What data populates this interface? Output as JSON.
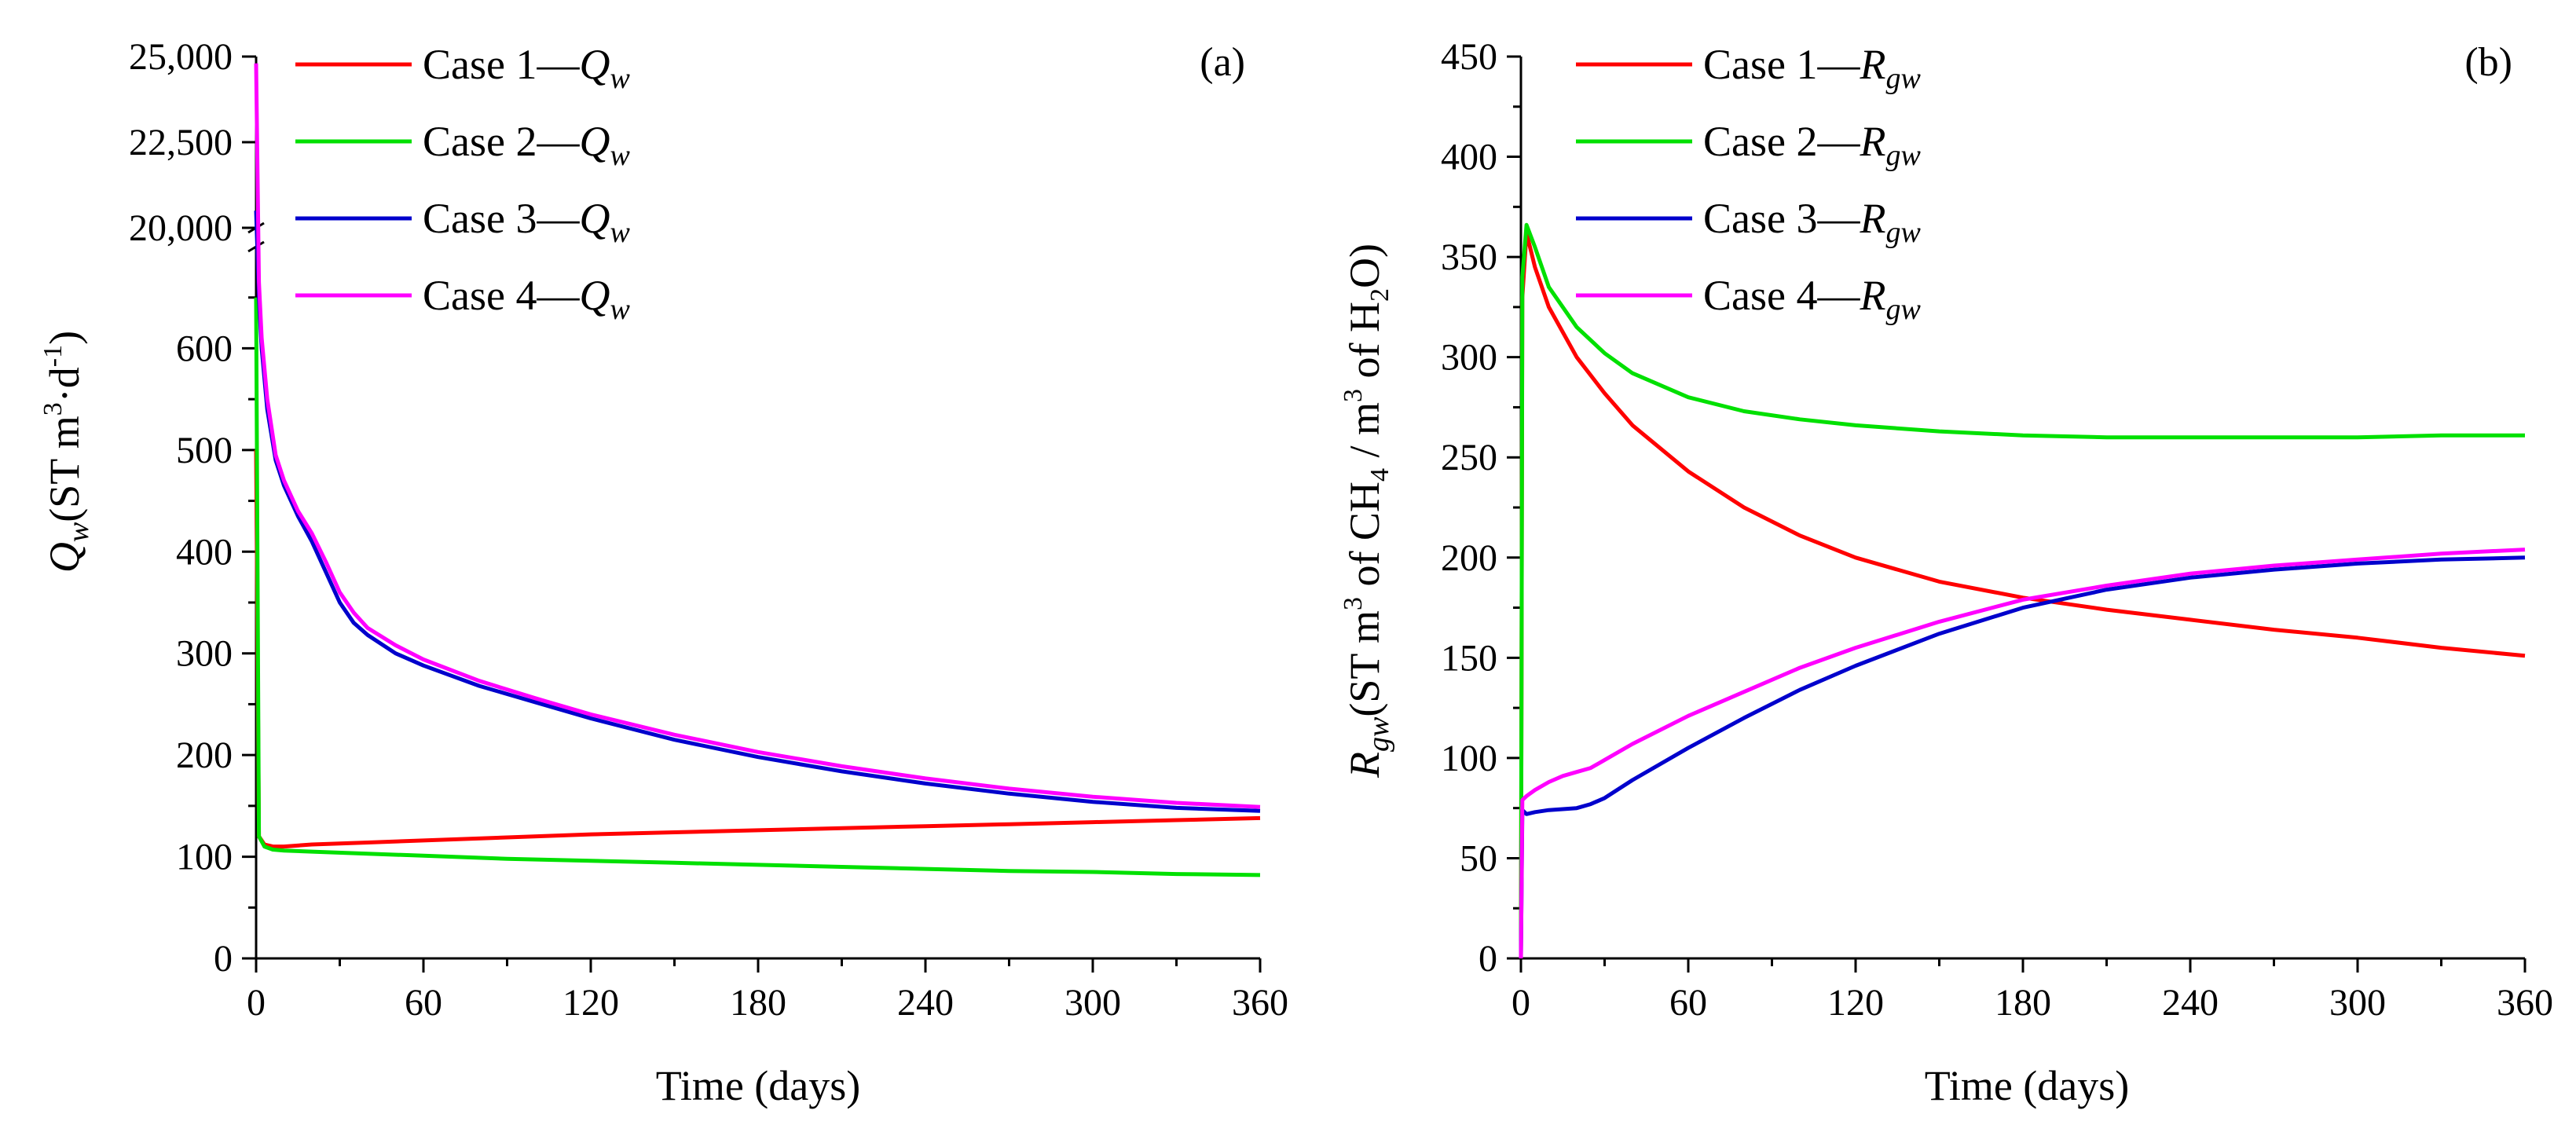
{
  "chart_data": [
    {
      "type": "line",
      "panel": "(a)",
      "xlabel": "Time (days)",
      "ylabel": {
        "main": "Q",
        "sub": "w",
        "unit_pre": "(ST m",
        "unit_sup1": "3",
        "unit_mid": "·d",
        "unit_sup2": "-1",
        "unit_post": ")"
      },
      "xlim": [
        0,
        360
      ],
      "xticks": [
        0,
        60,
        120,
        180,
        240,
        300,
        360
      ],
      "xtick_labels": [
        "0",
        "60",
        "120",
        "180",
        "240",
        "300",
        "360"
      ],
      "ylim_lower": [
        0,
        700
      ],
      "yticks_lower": [
        0,
        100,
        200,
        300,
        400,
        500,
        600
      ],
      "ytick_labels_lower": [
        "0",
        "100",
        "200",
        "300",
        "400",
        "500",
        "600"
      ],
      "ylim_upper": [
        20000,
        25000
      ],
      "yticks_upper": [
        20000,
        22500,
        25000
      ],
      "ytick_labels_upper": [
        "20,000",
        "22,500",
        "25,000"
      ],
      "axis_break": true,
      "legend": {
        "placement": "top-left"
      },
      "series": [
        {
          "name": "Case 1",
          "label_prefix": "Case 1—",
          "label_var": "Q",
          "label_sub": "w",
          "color": "#ff0000",
          "x": [
            0,
            1,
            3,
            6,
            10,
            20,
            40,
            60,
            90,
            120,
            150,
            180,
            210,
            240,
            270,
            300,
            330,
            360
          ],
          "y": [
            500,
            120,
            112,
            110,
            110,
            112,
            114,
            116,
            119,
            122,
            124,
            126,
            128,
            130,
            132,
            134,
            136,
            138
          ]
        },
        {
          "name": "Case 2",
          "label_prefix": "Case 2—",
          "label_var": "Q",
          "label_sub": "w",
          "color": "#00e000",
          "x": [
            0,
            1,
            3,
            6,
            10,
            20,
            40,
            60,
            90,
            120,
            150,
            180,
            210,
            240,
            270,
            300,
            330,
            360
          ],
          "y": [
            650,
            120,
            110,
            107,
            106,
            105,
            103,
            101,
            98,
            96,
            94,
            92,
            90,
            88,
            86,
            85,
            83,
            82
          ]
        },
        {
          "name": "Case 3",
          "label_prefix": "Case 3—",
          "label_var": "Q",
          "label_sub": "w",
          "color": "#0000cc",
          "x": [
            0,
            1,
            2,
            4,
            7,
            10,
            15,
            20,
            25,
            30,
            35,
            40,
            50,
            60,
            80,
            100,
            120,
            150,
            180,
            210,
            240,
            270,
            300,
            330,
            360
          ],
          "y": [
            20500,
            650,
            600,
            540,
            490,
            465,
            435,
            410,
            380,
            350,
            330,
            318,
            300,
            288,
            268,
            252,
            236,
            215,
            198,
            184,
            172,
            162,
            154,
            148,
            145
          ]
        },
        {
          "name": "Case 4",
          "label_prefix": "Case 4—",
          "label_var": "Q",
          "label_sub": "w",
          "color": "#ff00ff",
          "x": [
            0,
            1,
            2,
            4,
            7,
            10,
            15,
            20,
            25,
            30,
            35,
            40,
            50,
            60,
            80,
            100,
            120,
            150,
            180,
            210,
            240,
            270,
            300,
            330,
            360
          ],
          "y": [
            24800,
            665,
            610,
            550,
            495,
            470,
            440,
            418,
            390,
            360,
            340,
            325,
            308,
            294,
            273,
            256,
            240,
            220,
            203,
            189,
            177,
            167,
            159,
            153,
            149
          ]
        }
      ]
    },
    {
      "type": "line",
      "panel": "(b)",
      "xlabel": "Time (days)",
      "ylabel": {
        "main": "R",
        "sub": "gw",
        "unit_pre": "(ST m",
        "unit_sup1": "3",
        "unit_mid1": " of CH",
        "unit_sub1": "4",
        "unit_mid2": " / m",
        "unit_sup2": "3",
        "unit_mid3": " of H",
        "unit_sub2": "2",
        "unit_post": "O)"
      },
      "xlim": [
        0,
        360
      ],
      "xticks": [
        0,
        60,
        120,
        180,
        240,
        300,
        360
      ],
      "xtick_labels": [
        "0",
        "60",
        "120",
        "180",
        "240",
        "300",
        "360"
      ],
      "ylim": [
        0,
        450
      ],
      "yticks": [
        0,
        50,
        100,
        150,
        200,
        250,
        300,
        350,
        400,
        450
      ],
      "ytick_labels": [
        "0",
        "50",
        "100",
        "150",
        "200",
        "250",
        "300",
        "350",
        "400",
        "450"
      ],
      "legend": {
        "placement": "top-left"
      },
      "series": [
        {
          "name": "Case 1",
          "label_prefix": "Case 1—",
          "label_var": "R",
          "label_sub": "gw",
          "color": "#ff0000",
          "x": [
            0,
            0.5,
            2,
            5,
            10,
            20,
            30,
            40,
            60,
            80,
            100,
            120,
            150,
            180,
            210,
            240,
            270,
            300,
            330,
            360
          ],
          "y": [
            0,
            330,
            362,
            345,
            325,
            300,
            282,
            266,
            243,
            225,
            211,
            200,
            188,
            180,
            174,
            169,
            164,
            160,
            155,
            151
          ]
        },
        {
          "name": "Case 2",
          "label_prefix": "Case 2—",
          "label_var": "R",
          "label_sub": "gw",
          "color": "#00e000",
          "x": [
            0,
            0.5,
            2,
            5,
            10,
            20,
            30,
            40,
            60,
            80,
            100,
            120,
            150,
            180,
            210,
            240,
            270,
            300,
            330,
            360
          ],
          "y": [
            0,
            340,
            366,
            355,
            335,
            315,
            302,
            292,
            280,
            273,
            269,
            266,
            263,
            261,
            260,
            260,
            260,
            260,
            261,
            261
          ]
        },
        {
          "name": "Case 3",
          "label_prefix": "Case 3—",
          "label_var": "R",
          "label_sub": "gw",
          "color": "#0000cc",
          "x": [
            0,
            0.5,
            2,
            5,
            10,
            20,
            25,
            30,
            40,
            60,
            80,
            100,
            120,
            150,
            180,
            210,
            240,
            270,
            300,
            330,
            360
          ],
          "y": [
            0,
            74,
            72,
            73,
            74,
            75,
            77,
            80,
            89,
            105,
            120,
            134,
            146,
            162,
            175,
            184,
            190,
            194,
            197,
            199,
            200
          ]
        },
        {
          "name": "Case 4",
          "label_prefix": "Case 4—",
          "label_var": "R",
          "label_sub": "gw",
          "color": "#ff00ff",
          "x": [
            0,
            0.5,
            2,
            5,
            10,
            15,
            20,
            25,
            30,
            40,
            60,
            80,
            100,
            120,
            150,
            180,
            210,
            240,
            270,
            300,
            330,
            360
          ],
          "y": [
            0,
            79,
            81,
            84,
            88,
            91,
            93,
            95,
            99,
            107,
            121,
            133,
            145,
            155,
            168,
            179,
            186,
            192,
            196,
            199,
            202,
            204
          ]
        }
      ]
    }
  ]
}
